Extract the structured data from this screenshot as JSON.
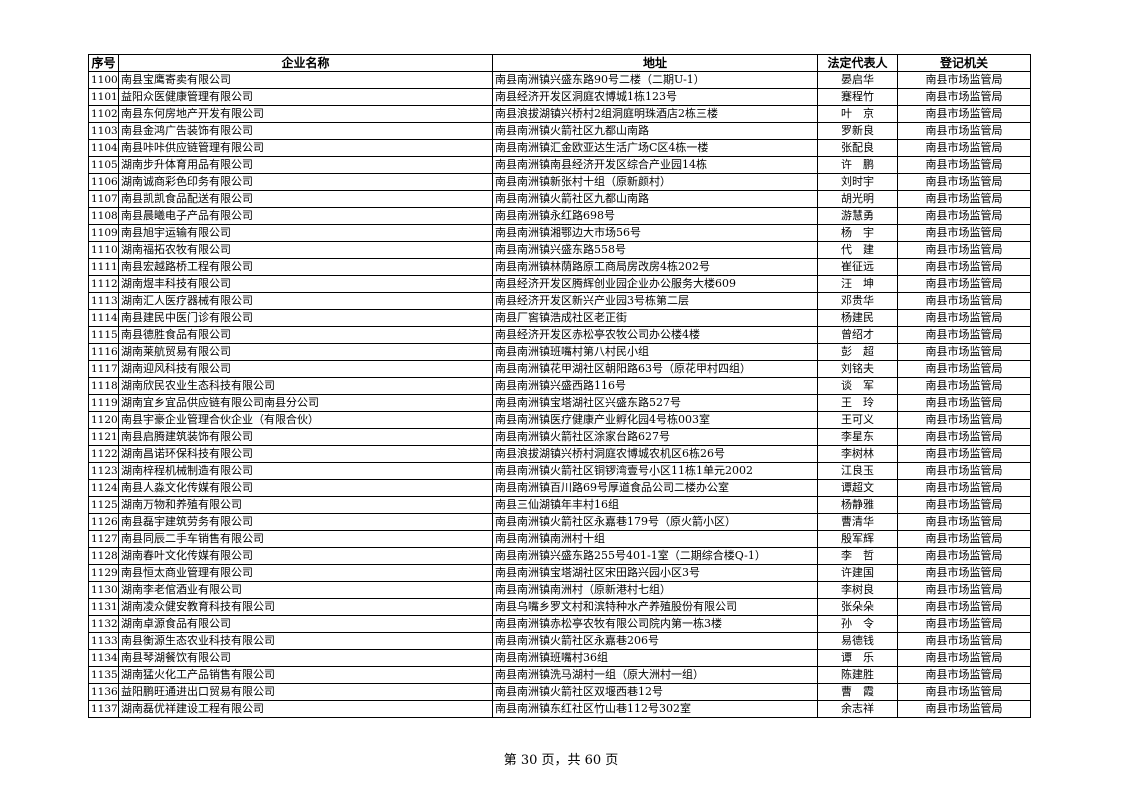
{
  "headers": [
    "序号",
    "企业名称",
    "地址",
    "法定代表人",
    "登记机关"
  ],
  "rows": [
    [
      "1100",
      "南县宝鹰寄卖有限公司",
      "南县南洲镇兴盛东路90号二楼（二期U-1）",
      "晏启华",
      "南县市场监管局"
    ],
    [
      "1101",
      "益阳众医健康管理有限公司",
      "南县经济开发区洞庭农博城1栋123号",
      "蹇程竹",
      "南县市场监管局"
    ],
    [
      "1102",
      "南县东何房地产开发有限公司",
      "南县浪拔湖镇兴桥村2组洞庭明珠酒店2栋三楼",
      "叶　京",
      "南县市场监管局"
    ],
    [
      "1103",
      "南县金鸿广告装饰有限公司",
      "南县南洲镇火箭社区九都山南路",
      "罗新良",
      "南县市场监管局"
    ],
    [
      "1104",
      "南县咔咔供应链管理有限公司",
      "南县南洲镇汇金欧亚达生活广场C区4栋一楼",
      "张配良",
      "南县市场监管局"
    ],
    [
      "1105",
      "湖南步升体育用品有限公司",
      "南县南洲镇南县经济开发区综合产业园14栋",
      "许　鹏",
      "南县市场监管局"
    ],
    [
      "1106",
      "湖南诚商彩色印务有限公司",
      "南县南洲镇新张村十组（原新颜村）",
      "刘时宇",
      "南县市场监管局"
    ],
    [
      "1107",
      "南县凯凯食品配送有限公司",
      "南县南洲镇火箭社区九都山南路",
      "胡光明",
      "南县市场监管局"
    ],
    [
      "1108",
      "南县晨曦电子产品有限公司",
      "南县南洲镇永红路698号",
      "游慧勇",
      "南县市场监管局"
    ],
    [
      "1109",
      "南县旭宇运输有限公司",
      "南县南洲镇湘鄂边大市场56号",
      "杨　宇",
      "南县市场监管局"
    ],
    [
      "1110",
      "湖南福拓农牧有限公司",
      "南县南洲镇兴盛东路558号",
      "代　建",
      "南县市场监管局"
    ],
    [
      "1111",
      "南县宏越路桥工程有限公司",
      "南县南洲镇林荫路原工商局房改房4栋202号",
      "崔征远",
      "南县市场监管局"
    ],
    [
      "1112",
      "湖南煜丰科技有限公司",
      "南县经济开发区腾辉创业园企业办公服务大楼609",
      "汪　坤",
      "南县市场监管局"
    ],
    [
      "1113",
      "湖南汇人医疗器械有限公司",
      "南县经济开发区新兴产业园3号栋第二层",
      "邓贵华",
      "南县市场监管局"
    ],
    [
      "1114",
      "南县建民中医门诊有限公司",
      "南县厂窖镇浩成社区老正街",
      "杨建民",
      "南县市场监管局"
    ],
    [
      "1115",
      "南县德胜食品有限公司",
      "南县经济开发区赤松亭农牧公司办公楼4楼",
      "曾绍才",
      "南县市场监管局"
    ],
    [
      "1116",
      "湖南莱航贸易有限公司",
      "南县南洲镇班嘴村第八村民小组",
      "彭　超",
      "南县市场监管局"
    ],
    [
      "1117",
      "湖南迎风科技有限公司",
      "南县南洲镇花甲湖社区朝阳路63号（原花甲村四组）",
      "刘铭夫",
      "南县市场监管局"
    ],
    [
      "1118",
      "湖南欣民农业生态科技有限公司",
      "南县南洲镇兴盛西路116号",
      "谈　军",
      "南县市场监管局"
    ],
    [
      "1119",
      "湖南宜乡宜品供应链有限公司南县分公司",
      "南县南洲镇宝塔湖社区兴盛东路527号",
      "王　玲",
      "南县市场监管局"
    ],
    [
      "1120",
      "南县宇豪企业管理合伙企业（有限合伙）",
      "南县南洲镇医疗健康产业孵化园4号栋003室",
      "王可义",
      "南县市场监管局"
    ],
    [
      "1121",
      "南县启腾建筑装饰有限公司",
      "南县南洲镇火箭社区涂家台路627号",
      "李星东",
      "南县市场监管局"
    ],
    [
      "1122",
      "湖南昌诺环保科技有限公司",
      "南县浪拔湖镇兴桥村洞庭农博城农机区6栋26号",
      "李树林",
      "南县市场监管局"
    ],
    [
      "1123",
      "湖南梓程机械制造有限公司",
      "南县南洲镇火箭社区铜锣湾壹号小区11栋1单元2002",
      "江良玉",
      "南县市场监管局"
    ],
    [
      "1124",
      "南县人淼文化传媒有限公司",
      "南县南洲镇百川路69号厚道食品公司二楼办公室",
      "谭超文",
      "南县市场监管局"
    ],
    [
      "1125",
      "湖南万物和养殖有限公司",
      "南县三仙湖镇年丰村16组",
      "杨静雅",
      "南县市场监管局"
    ],
    [
      "1126",
      "南县磊宇建筑劳务有限公司",
      "南县南洲镇火箭社区永嘉巷179号（原火箭小区）",
      "曹清华",
      "南县市场监管局"
    ],
    [
      "1127",
      "南县同辰二手车销售有限公司",
      "南县南洲镇南洲村十组",
      "殷军辉",
      "南县市场监管局"
    ],
    [
      "1128",
      "湖南春叶文化传媒有限公司",
      "南县南洲镇兴盛东路255号401-1室（二期综合楼Q-1）",
      "李　哲",
      "南县市场监管局"
    ],
    [
      "1129",
      "南县恒太商业管理有限公司",
      "南县南洲镇宝塔湖社区宋田路兴园小区3号",
      "许建国",
      "南县市场监管局"
    ],
    [
      "1130",
      "湖南李老倌酒业有限公司",
      "南县南洲镇南洲村（原新港村七组）",
      "李树良",
      "南县市场监管局"
    ],
    [
      "1131",
      "湖南凌众健安教育科技有限公司",
      "南县乌嘴乡罗文村和滨特种水产养殖股份有限公司",
      "张朵朵",
      "南县市场监管局"
    ],
    [
      "1132",
      "湖南卓源食品有限公司",
      "南县南洲镇赤松亭农牧有限公司院内第一栋3楼",
      "孙　令",
      "南县市场监管局"
    ],
    [
      "1133",
      "南县衡源生态农业科技有限公司",
      "南县南洲镇火箭社区永嘉巷206号",
      "易德钱",
      "南县市场监管局"
    ],
    [
      "1134",
      "南县琴湖餐饮有限公司",
      "南县南洲镇班嘴村36组",
      "谭　乐",
      "南县市场监管局"
    ],
    [
      "1135",
      "湖南猛火化工产品销售有限公司",
      "南县南洲镇洗马湖村一组（原大洲村一组）",
      "陈建胜",
      "南县市场监管局"
    ],
    [
      "1136",
      "益阳鹏旺通进出口贸易有限公司",
      "南县南洲镇火箭社区双堰西巷12号",
      "曹　霞",
      "南县市场监管局"
    ],
    [
      "1137",
      "湖南磊优祥建设工程有限公司",
      "南县南洲镇东红社区竹山巷112号302室",
      "余志祥",
      "南县市场监管局"
    ]
  ],
  "footer": {
    "page_text": "第 30 页，共 60 页"
  }
}
